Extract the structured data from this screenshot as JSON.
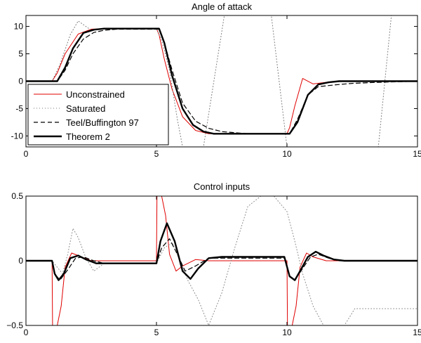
{
  "chart_data": [
    {
      "type": "line",
      "title": "Angle of attack",
      "xlim": [
        0,
        15
      ],
      "ylim": [
        -12,
        12
      ],
      "xticks": [
        0,
        5,
        10,
        15
      ],
      "yticks": [
        10,
        5,
        0,
        -5,
        -10
      ],
      "grid": false,
      "legend_position": "bottom-left",
      "series": [
        {
          "name": "Unconstrained",
          "color": "#e00000",
          "style": "solid",
          "x": [
            0,
            1.0,
            1.2,
            1.5,
            2.0,
            2.5,
            3.0,
            5.0,
            5.1,
            5.3,
            5.6,
            6.0,
            6.5,
            7.0,
            10.0,
            10.1,
            10.3,
            10.6,
            11.0,
            11.5,
            12.0,
            15.0
          ],
          "y": [
            0,
            0,
            1.5,
            5.0,
            8.6,
            9.5,
            9.6,
            9.6,
            8.5,
            4.0,
            -1.5,
            -6.5,
            -9.0,
            -9.6,
            -9.6,
            -8.5,
            -4.5,
            0.5,
            -0.5,
            -0.2,
            0.0,
            0.0
          ]
        },
        {
          "name": "Saturated",
          "color": "#777777",
          "style": "dotted",
          "x": [
            0,
            1.0,
            1.3,
            1.7,
            2.0,
            2.5,
            3.0,
            5.0,
            5.2,
            5.5,
            5.8,
            6.0,
            6.4,
            6.8,
            7.2,
            7.6,
            8.0,
            9.4,
            10.0,
            10.4,
            10.8,
            11.2,
            11.5,
            12.0,
            12.5,
            13.0,
            13.5,
            14.0,
            15.0
          ],
          "y": [
            0,
            0,
            3.0,
            8.5,
            11.0,
            9.3,
            9.6,
            9.6,
            7.5,
            2.0,
            -7.0,
            -12.0,
            -12.0,
            -12.0,
            0.0,
            12.0,
            12.0,
            12.0,
            -12.0,
            -12.0,
            -12.0,
            -12.0,
            -12.0,
            -12.0,
            -12.0,
            -12.0,
            -12.0,
            12.0,
            12.0
          ]
        },
        {
          "name": "Teel/Buffington 97",
          "color": "#000000",
          "style": "dashed",
          "x": [
            0,
            1.2,
            1.5,
            1.8,
            2.2,
            2.6,
            3.0,
            3.5,
            5.1,
            5.3,
            5.6,
            6.0,
            6.5,
            7.0,
            7.5,
            8.5,
            10.1,
            10.4,
            10.8,
            11.2,
            11.6,
            12.0,
            12.5,
            13.5,
            15.0
          ],
          "y": [
            0,
            0,
            2.0,
            5.0,
            7.7,
            8.9,
            9.3,
            9.5,
            9.5,
            7.0,
            2.0,
            -4.0,
            -7.3,
            -8.6,
            -9.2,
            -9.6,
            -9.6,
            -7.0,
            -2.5,
            -1.0,
            -0.8,
            -0.6,
            -0.4,
            -0.2,
            0.0
          ]
        },
        {
          "name": "Theorem 2",
          "color": "#000000",
          "style": "solid-thick",
          "x": [
            0,
            1.2,
            1.5,
            1.8,
            2.2,
            2.6,
            3.0,
            3.5,
            5.1,
            5.3,
            5.6,
            6.0,
            6.4,
            6.8,
            7.2,
            7.8,
            10.1,
            10.4,
            10.8,
            11.2,
            11.6,
            12.0,
            15.0
          ],
          "y": [
            0,
            0,
            2.5,
            6.0,
            8.8,
            9.4,
            9.6,
            9.6,
            9.6,
            7.0,
            1.0,
            -5.0,
            -8.0,
            -9.2,
            -9.6,
            -9.6,
            -9.6,
            -7.5,
            -2.5,
            -0.6,
            -0.2,
            0.0,
            0.0
          ]
        }
      ]
    },
    {
      "type": "line",
      "title": "Control inputs",
      "xlim": [
        0,
        15
      ],
      "ylim": [
        -0.5,
        0.5
      ],
      "xticks": [
        0,
        5,
        10,
        15
      ],
      "yticks": [
        0.5,
        0,
        -0.5
      ],
      "ytick_labels": [
        "0.5",
        "0",
        "−0.5"
      ],
      "grid": false,
      "series": [
        {
          "name": "Unconstrained",
          "color": "#e00000",
          "style": "solid",
          "x": [
            0,
            1.0,
            1.02,
            1.1,
            1.2,
            1.35,
            1.5,
            1.75,
            2.0,
            2.5,
            5.0,
            5.02,
            5.1,
            5.2,
            5.35,
            5.5,
            5.75,
            6.0,
            6.5,
            7.0,
            10.0,
            10.02,
            10.1,
            10.2,
            10.35,
            10.5,
            10.75,
            11.0,
            11.5,
            12.0,
            15.0
          ],
          "y": [
            0,
            0,
            -0.5,
            -0.5,
            -0.5,
            -0.35,
            -0.05,
            0.06,
            0.04,
            0.0,
            0.0,
            0.5,
            0.5,
            0.5,
            0.35,
            0.05,
            -0.08,
            -0.04,
            0.01,
            0.0,
            0.0,
            -0.5,
            -0.5,
            -0.5,
            -0.35,
            -0.05,
            0.06,
            0.03,
            0.0,
            0.0,
            0.0
          ]
        },
        {
          "name": "Saturated",
          "color": "#888888",
          "style": "dotted",
          "x": [
            0,
            1.0,
            1.2,
            1.4,
            1.6,
            1.8,
            2.0,
            2.3,
            2.6,
            3.0,
            5.0,
            5.3,
            5.6,
            5.9,
            6.2,
            6.6,
            7.0,
            7.5,
            8.0,
            8.5,
            9.0,
            9.5,
            10.0,
            10.3,
            10.6,
            11.0,
            11.4,
            11.8,
            12.2,
            12.6,
            13.0,
            13.6,
            14.2,
            14.8,
            15.0
          ],
          "y": [
            0,
            0,
            -0.05,
            -0.1,
            0.05,
            0.25,
            0.18,
            0.02,
            -0.08,
            -0.02,
            -0.02,
            0.1,
            0.14,
            0.0,
            -0.15,
            -0.3,
            -0.5,
            -0.25,
            0.1,
            0.42,
            0.5,
            0.5,
            0.38,
            0.15,
            -0.1,
            -0.35,
            -0.5,
            -0.5,
            -0.5,
            -0.37,
            -0.37,
            -0.37,
            -0.37,
            -0.37,
            -0.37
          ]
        },
        {
          "name": "Teel/Buffington 97",
          "color": "#000000",
          "style": "dashed",
          "x": [
            0,
            1.0,
            1.1,
            1.3,
            1.6,
            1.9,
            2.2,
            2.6,
            3.0,
            5.0,
            5.2,
            5.5,
            5.8,
            6.1,
            6.5,
            7.0,
            8.0,
            9.9,
            10.1,
            10.3,
            10.6,
            10.9,
            11.2,
            11.6,
            12.0,
            15.0
          ],
          "y": [
            0,
            0,
            -0.1,
            -0.15,
            -0.07,
            0.02,
            0.03,
            0.0,
            -0.02,
            -0.02,
            0.1,
            0.17,
            0.05,
            -0.08,
            -0.04,
            0.02,
            0.02,
            0.02,
            -0.12,
            -0.15,
            -0.06,
            0.03,
            0.05,
            0.02,
            0.0,
            0.0
          ]
        },
        {
          "name": "Theorem 2",
          "color": "#000000",
          "style": "solid-thick",
          "x": [
            0,
            1.0,
            1.1,
            1.25,
            1.45,
            1.7,
            2.0,
            2.3,
            2.7,
            3.0,
            5.0,
            5.15,
            5.4,
            5.7,
            6.0,
            6.3,
            6.6,
            7.0,
            7.5,
            9.9,
            10.1,
            10.3,
            10.5,
            10.8,
            11.1,
            11.4,
            11.8,
            12.2,
            15.0
          ],
          "y": [
            0,
            0,
            -0.1,
            -0.15,
            -0.1,
            0.02,
            0.04,
            0.01,
            -0.02,
            -0.02,
            -0.02,
            0.15,
            0.29,
            0.15,
            -0.08,
            -0.14,
            -0.06,
            0.02,
            0.03,
            0.03,
            -0.12,
            -0.15,
            -0.08,
            0.03,
            0.07,
            0.04,
            0.01,
            0.0,
            0.0
          ]
        }
      ]
    }
  ]
}
